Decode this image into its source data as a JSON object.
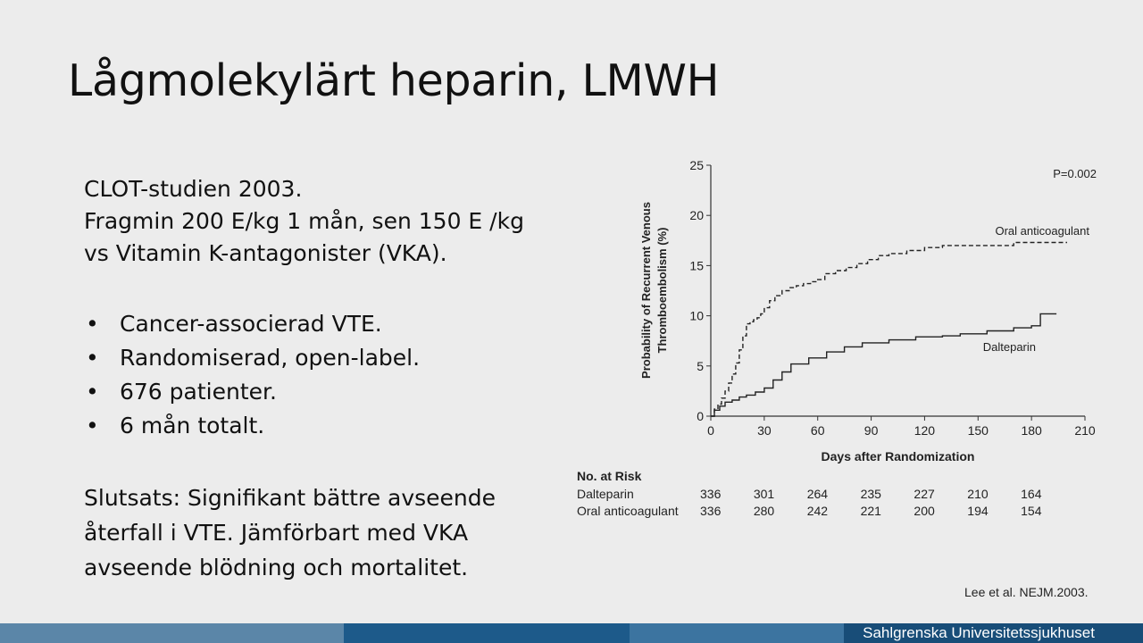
{
  "slide": {
    "title": "Lågmolekylärt heparin, LMWH",
    "intro": [
      "CLOT-studien 2003.",
      "Fragmin 200 E/kg 1 mån, sen 150 E /kg",
      "vs Vitamin K-antagonister (VKA)."
    ],
    "bullets": [
      "Cancer-associerad VTE.",
      "Randomiserad, open-label.",
      "676 patienter.",
      "6 mån totalt."
    ],
    "bullet_glyph": "•",
    "conclusion": [
      "Slutsats: Signifikant bättre avseende",
      "återfall i VTE. Jämförbart med VKA",
      "avseende blödning och mortalitet."
    ],
    "citation": "Lee et al. NEJM.2003.",
    "footer": {
      "brand": "Sahlgrenska Universitetssjukhuset",
      "color": "#184d78"
    }
  },
  "chart_data": {
    "type": "line",
    "title": "",
    "xlabel": "Days after Randomization",
    "ylabel_lines": [
      "Probability of Recurrent Venous",
      "Thromboembolism (%)"
    ],
    "xlim": [
      0,
      210
    ],
    "ylim": [
      0,
      25
    ],
    "xticks": [
      0,
      30,
      60,
      90,
      120,
      150,
      180,
      210
    ],
    "yticks": [
      0,
      5,
      10,
      15,
      20,
      25
    ],
    "annotation": "P=0.002",
    "series": [
      {
        "name": "Oral anticoagulant",
        "style": "dashed",
        "x": [
          0,
          2,
          4,
          6,
          8,
          10,
          12,
          14,
          16,
          18,
          20,
          22,
          24,
          26,
          28,
          30,
          33,
          36,
          40,
          44,
          48,
          52,
          56,
          60,
          64,
          70,
          76,
          82,
          88,
          94,
          100,
          110,
          120,
          130,
          150,
          170,
          190,
          200
        ],
        "y": [
          0,
          0.7,
          1.2,
          1.8,
          2.5,
          3.3,
          4.2,
          5.3,
          6.6,
          8.0,
          9.2,
          9.4,
          9.6,
          9.8,
          10.2,
          10.8,
          11.5,
          12.0,
          12.5,
          12.8,
          13.0,
          13.2,
          13.4,
          13.6,
          14.2,
          14.5,
          14.8,
          15.2,
          15.6,
          16.0,
          16.2,
          16.5,
          16.8,
          17.0,
          17.0,
          17.3,
          17.3,
          17.3
        ]
      },
      {
        "name": "Dalteparin",
        "style": "solid",
        "x": [
          0,
          2,
          5,
          8,
          12,
          16,
          20,
          25,
          30,
          35,
          40,
          45,
          55,
          65,
          75,
          85,
          100,
          115,
          130,
          140,
          155,
          170,
          180,
          185,
          194
        ],
        "y": [
          0,
          0.6,
          1.0,
          1.4,
          1.6,
          1.9,
          2.1,
          2.4,
          2.8,
          3.6,
          4.4,
          5.2,
          5.8,
          6.4,
          6.9,
          7.3,
          7.6,
          7.9,
          8.0,
          8.2,
          8.5,
          8.8,
          9.0,
          10.2,
          10.2
        ]
      }
    ],
    "series_labels": [
      "Oral anticoagulant",
      "Dalteparin"
    ],
    "risk_table": {
      "header": "No. at Risk",
      "rows": [
        {
          "label": "Dalteparin",
          "values": [
            336,
            301,
            264,
            235,
            227,
            210,
            164
          ]
        },
        {
          "label": "Oral anticoagulant",
          "values": [
            336,
            280,
            242,
            221,
            200,
            194,
            154
          ]
        }
      ]
    }
  }
}
